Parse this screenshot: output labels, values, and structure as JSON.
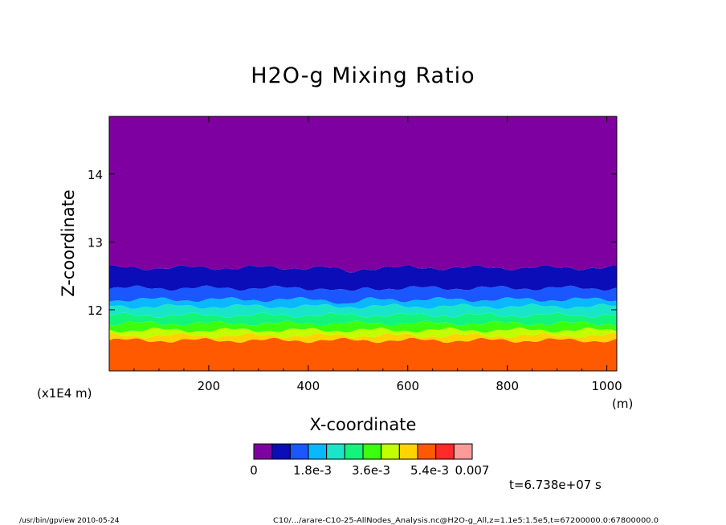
{
  "colors": {
    "band_purple": "#7f00a0",
    "band_dark_blue": "#0b0db8",
    "band_blue": "#1a57ff",
    "band_sky": "#0ab8ff",
    "band_cyan": "#19e6c9",
    "band_sea_green": "#12f57a",
    "band_green": "#3cff0f",
    "band_lime": "#c2ff00",
    "band_yellow": "#ffd400",
    "band_orange": "#ff5a00",
    "band_red": "#ff2a2a",
    "band_pink": "#ff9a9a"
  },
  "chart_data": {
    "type": "heatmap",
    "title": "H2O-g Mixing Ratio",
    "xlabel": "X-coordinate",
    "ylabel": "Z-coordinate",
    "x_units": "(m)",
    "y_units": "(x1E4 m)",
    "xlim": [
      0,
      1020
    ],
    "ylim": [
      11.1,
      14.85
    ],
    "x_ticks": [
      200,
      400,
      600,
      800,
      1000
    ],
    "y_ticks": [
      12,
      13,
      14
    ],
    "x_tick_labels": [
      "200",
      "400",
      "600",
      "800",
      "1000"
    ],
    "y_tick_labels": [
      "12",
      "13",
      "14"
    ],
    "colorbar": {
      "colors": [
        "#7f00a0",
        "#0b0db8",
        "#1a57ff",
        "#0ab8ff",
        "#19e6c9",
        "#12f57a",
        "#3cff0f",
        "#c2ff00",
        "#ffd400",
        "#ff5a00",
        "#ff2a2a",
        "#ff9a9a"
      ],
      "labels": [
        "0",
        "1.8e-3",
        "3.6e-3",
        "5.4e-3",
        "0.007"
      ],
      "min": 0,
      "max": 0.0072
    },
    "layers": [
      {
        "color": "#ff5a00",
        "z_bottom": 11.1,
        "z_top": 11.55
      },
      {
        "color": "#ffd400",
        "z_bottom": 11.55,
        "z_top": 11.62
      },
      {
        "color": "#c2ff00",
        "z_bottom": 11.62,
        "z_top": 11.7
      },
      {
        "color": "#3cff0f",
        "z_bottom": 11.7,
        "z_top": 11.8
      },
      {
        "color": "#12f57a",
        "z_bottom": 11.8,
        "z_top": 11.92
      },
      {
        "color": "#19e6c9",
        "z_bottom": 11.92,
        "z_top": 12.05
      },
      {
        "color": "#0ab8ff",
        "z_bottom": 12.05,
        "z_top": 12.15
      },
      {
        "color": "#1a57ff",
        "z_bottom": 12.15,
        "z_top": 12.32
      },
      {
        "color": "#0b0db8",
        "z_bottom": 12.32,
        "z_top": 12.62
      },
      {
        "color": "#7f00a0",
        "z_bottom": 12.62,
        "z_top": 14.85
      }
    ],
    "time_label": "t=6.738e+07 s",
    "footer_left": "/usr/bin/gpview   2010-05-24",
    "footer_right": "C10/.../arare-C10-25-AllNodes_Analysis.nc@H2O-g_All,z=1.1e5:1.5e5,t=67200000.0:67800000.0"
  }
}
